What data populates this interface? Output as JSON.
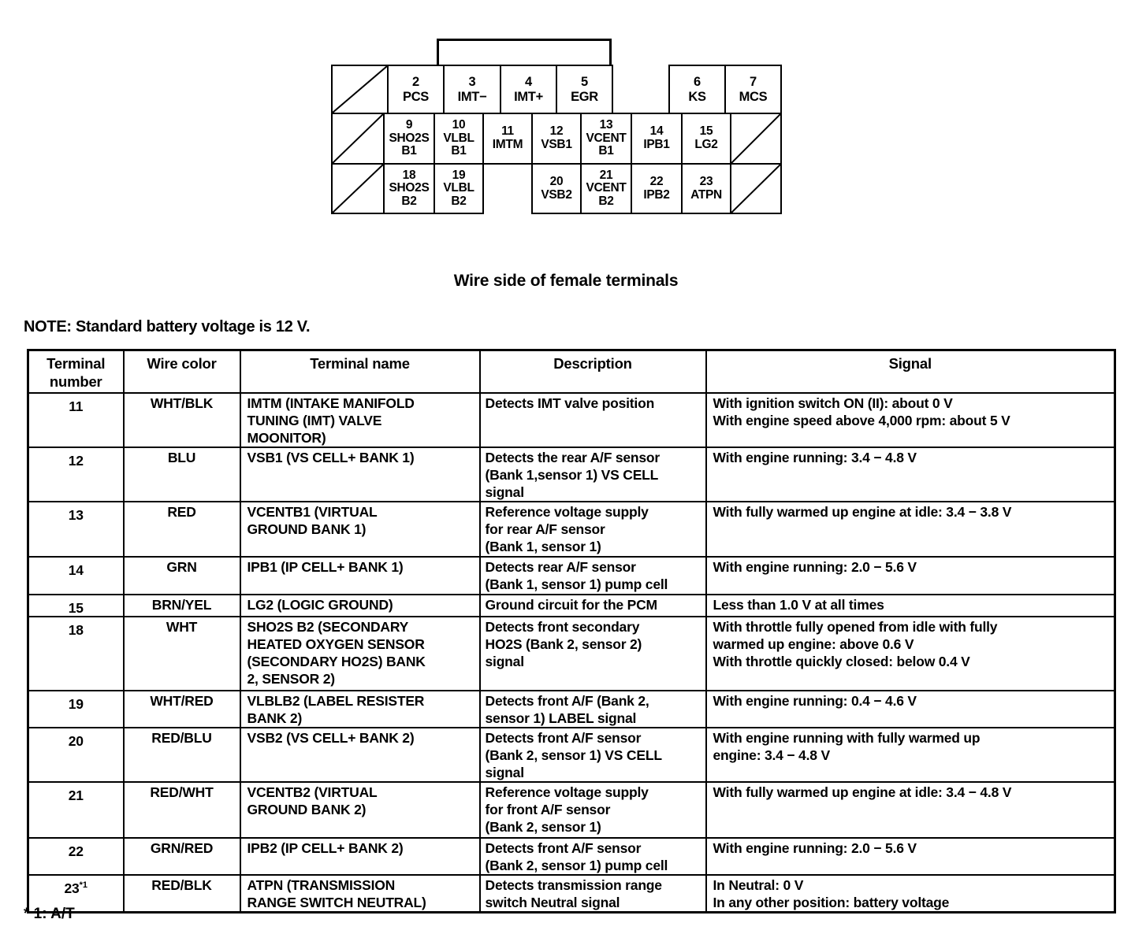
{
  "connector": {
    "caption": "Wire side of female terminals",
    "rows": [
      {
        "cells": [
          {
            "type": "diag"
          },
          {
            "type": "pin",
            "label": "2\nPCS"
          },
          {
            "type": "pin",
            "label": "3\nIMT−"
          },
          {
            "type": "pin",
            "label": "4\nIMT+"
          },
          {
            "type": "pin",
            "label": "5\nEGR"
          },
          {
            "type": "gap"
          },
          {
            "type": "pin",
            "label": "6\nKS"
          },
          {
            "type": "pin",
            "label": "7\nMCS"
          }
        ]
      },
      {
        "cells": [
          {
            "type": "diag"
          },
          {
            "type": "pin",
            "label": "9\nSHO2S\nB1"
          },
          {
            "type": "pin",
            "label": "10\nVLBL\nB1"
          },
          {
            "type": "pin",
            "label": "11\nIMTM"
          },
          {
            "type": "pin",
            "label": "12\nVSB1"
          },
          {
            "type": "pin",
            "label": "13\nVCENT\nB1"
          },
          {
            "type": "pin",
            "label": "14\nIPB1"
          },
          {
            "type": "pin",
            "label": "15\nLG2"
          },
          {
            "type": "diag"
          }
        ]
      },
      {
        "cells": [
          {
            "type": "diag"
          },
          {
            "type": "pin",
            "label": "18\nSHO2S\nB2"
          },
          {
            "type": "pin",
            "label": "19\nVLBL\nB2"
          },
          {
            "type": "gap"
          },
          {
            "type": "pin",
            "label": "20\nVSB2"
          },
          {
            "type": "pin",
            "label": "21\nVCENT\nB2"
          },
          {
            "type": "pin",
            "label": "22\nIPB2"
          },
          {
            "type": "pin",
            "label": "23\nATPN"
          },
          {
            "type": "diag"
          }
        ]
      }
    ]
  },
  "note": "NOTE: Standard battery voltage is 12 V.",
  "table": {
    "headers": [
      "Terminal\nnumber",
      "Wire color",
      "Terminal name",
      "Description",
      "Signal"
    ],
    "rows": [
      {
        "number": "11",
        "note": "",
        "wire_color": "WHT/BLK",
        "name": "IMTM (INTAKE MANIFOLD\nTUNING (IMT) VALVE\nMOONITOR)",
        "description": "Detects IMT valve position",
        "signal": "With ignition switch ON (II): about 0 V\nWith engine speed above 4,000 rpm: about 5 V"
      },
      {
        "number": "12",
        "note": "",
        "wire_color": "BLU",
        "name": "VSB1 (VS CELL+ BANK 1)",
        "description": "Detects the rear A/F sensor\n(Bank 1,sensor 1) VS CELL\nsignal",
        "signal": "With engine running: 3.4 − 4.8 V"
      },
      {
        "number": "13",
        "note": "",
        "wire_color": "RED",
        "name": "VCENTB1 (VIRTUAL\nGROUND BANK 1)",
        "description": "Reference voltage supply\nfor rear A/F sensor\n(Bank 1, sensor 1)",
        "signal": "With fully warmed up engine at idle: 3.4 − 3.8 V"
      },
      {
        "number": "14",
        "note": "",
        "wire_color": "GRN",
        "name": "IPB1 (IP CELL+ BANK 1)",
        "description": "Detects rear A/F sensor\n(Bank 1, sensor 1) pump cell",
        "signal": "With engine running: 2.0 − 5.6 V"
      },
      {
        "number": "15",
        "note": "",
        "wire_color": "BRN/YEL",
        "name": "LG2 (LOGIC GROUND)",
        "description": "Ground circuit for the PCM",
        "signal": "Less than 1.0 V at all times"
      },
      {
        "number": "18",
        "note": "",
        "wire_color": "WHT",
        "name": "SHO2S B2 (SECONDARY\nHEATED OXYGEN SENSOR\n(SECONDARY HO2S) BANK\n2, SENSOR 2)",
        "description": "Detects front secondary\nHO2S (Bank 2, sensor 2)\nsignal",
        "signal": "With throttle fully opened from idle with fully\nwarmed up engine: above 0.6 V\nWith throttle quickly closed: below 0.4 V"
      },
      {
        "number": "19",
        "note": "",
        "wire_color": "WHT/RED",
        "name": "VLBLB2 (LABEL RESISTER\nBANK 2)",
        "description": "Detects front A/F (Bank 2,\nsensor 1) LABEL signal",
        "signal": "With engine running: 0.4 − 4.6 V"
      },
      {
        "number": "20",
        "note": "",
        "wire_color": "RED/BLU",
        "name": "VSB2 (VS CELL+ BANK 2)",
        "description": "Detects front A/F sensor\n(Bank 2, sensor 1) VS CELL\nsignal",
        "signal": "With engine running with fully warmed up\nengine: 3.4 − 4.8 V"
      },
      {
        "number": "21",
        "note": "",
        "wire_color": "RED/WHT",
        "name": "VCENTB2 (VIRTUAL\nGROUND BANK 2)",
        "description": "Reference voltage supply\nfor front A/F sensor\n(Bank 2, sensor 1)",
        "signal": "With fully warmed up engine at idle: 3.4 − 4.8 V"
      },
      {
        "number": "22",
        "note": "",
        "wire_color": "GRN/RED",
        "name": "IPB2 (IP CELL+ BANK 2)",
        "description": "Detects front A/F sensor\n(Bank 2, sensor 1) pump cell",
        "signal": "With engine running: 2.0 − 5.6 V"
      },
      {
        "number": "23",
        "note": "*1",
        "wire_color": "RED/BLK",
        "name": "ATPN (TRANSMISSION\nRANGE SWITCH NEUTRAL)",
        "description": "Detects transmission range\nswitch Neutral signal",
        "signal": "In Neutral: 0 V\nIn any other position: battery voltage"
      }
    ]
  },
  "footnote": "* 1: A/T"
}
